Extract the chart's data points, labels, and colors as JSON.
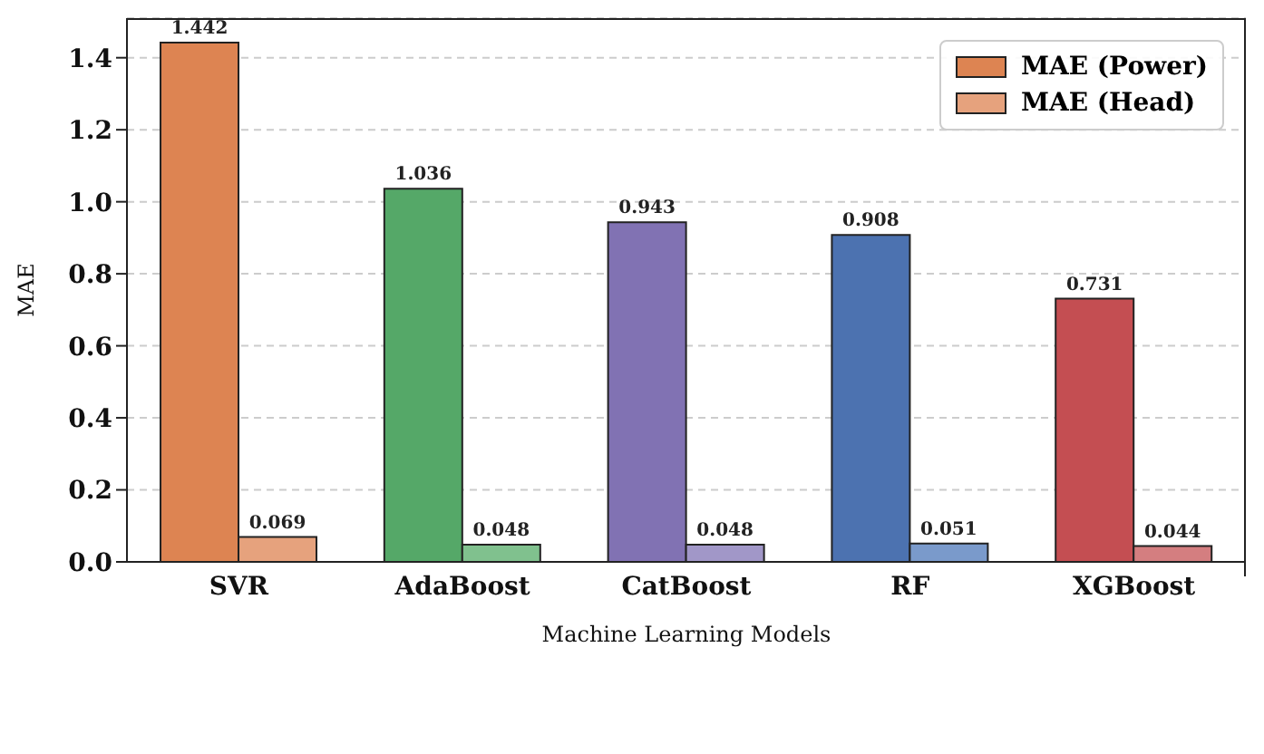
{
  "chart_data": {
    "type": "bar",
    "xlabel": "Machine Learning Models",
    "ylabel": "MAE",
    "categories": [
      "SVR",
      "AdaBoost",
      "CatBoost",
      "RF",
      "XGBoost"
    ],
    "series": [
      {
        "name": "MAE (Power)",
        "color": "#dd8452",
        "colors": [
          "#dd8452",
          "#55a868",
          "#8172b3",
          "#4c72b0",
          "#c44e52"
        ],
        "values": [
          1.442,
          1.036,
          0.943,
          0.908,
          0.731
        ]
      },
      {
        "name": "MAE (Head)",
        "color": "#e6a27d",
        "colors": [
          "#e6a27d",
          "#80c18e",
          "#a197c8",
          "#7a9acb",
          "#d47e80"
        ],
        "values": [
          0.069,
          0.048,
          0.048,
          0.051,
          0.044
        ]
      }
    ],
    "ylim": [
      0,
      1.51
    ],
    "yticks": [
      {
        "value": 0,
        "label": "0.0"
      },
      0.2,
      0.4,
      0.6,
      0.8,
      {
        "value": 1,
        "label": "1.0"
      },
      1.2,
      1.4
    ],
    "grid": "y",
    "legend": "top right",
    "data_labels": true
  }
}
